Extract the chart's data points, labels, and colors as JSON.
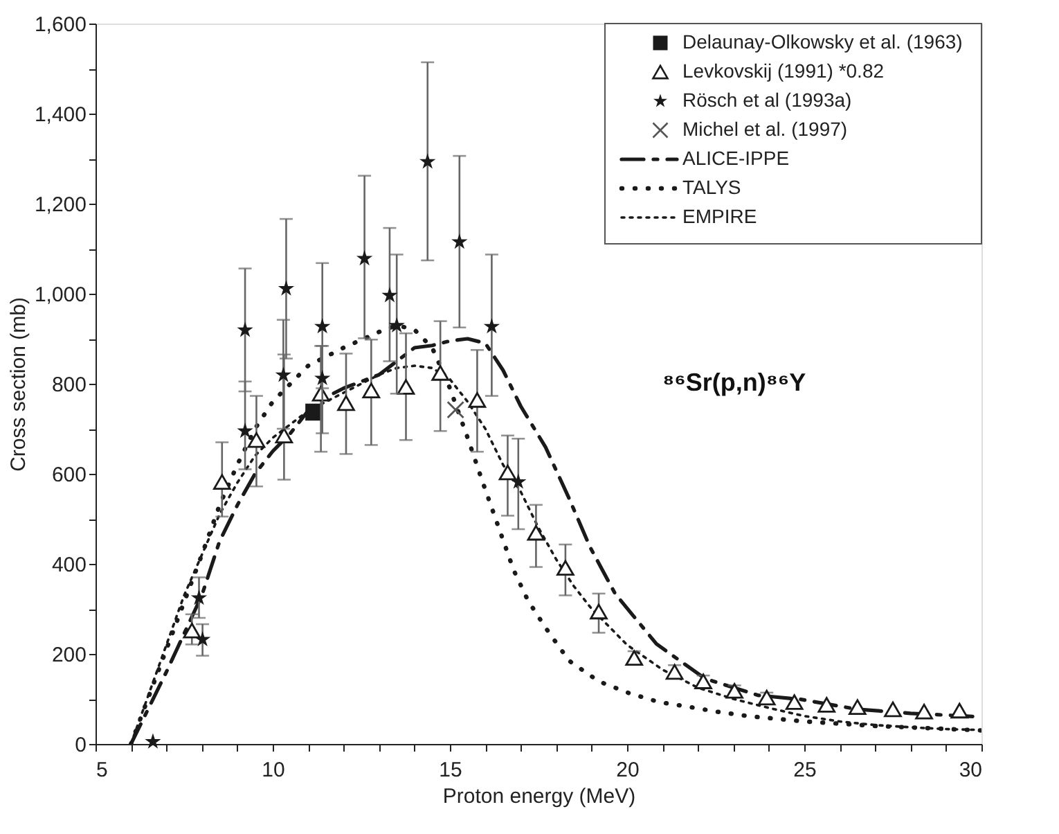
{
  "chart_data": {
    "type": "scatter",
    "xlabel": "Proton energy (MeV)",
    "ylabel": "Cross section (mb)",
    "xlim": [
      5,
      30
    ],
    "ylim": [
      0,
      1600
    ],
    "xticks": [
      5,
      {
        "value": 6,
        "label": null
      },
      {
        "value": 7,
        "label": null
      },
      {
        "value": 8,
        "label": null
      },
      {
        "value": 9,
        "label": null
      },
      10,
      {
        "value": 11,
        "label": null
      },
      {
        "value": 12,
        "label": null
      },
      {
        "value": 13,
        "label": null
      },
      {
        "value": 14,
        "label": null
      },
      15,
      {
        "value": 16,
        "label": null
      },
      {
        "value": 17,
        "label": null
      },
      {
        "value": 18,
        "label": null
      },
      {
        "value": 19,
        "label": null
      },
      20,
      {
        "value": 21,
        "label": null
      },
      {
        "value": 22,
        "label": null
      },
      {
        "value": 23,
        "label": null
      },
      {
        "value": 24,
        "label": null
      },
      25,
      {
        "value": 26,
        "label": null
      },
      {
        "value": 27,
        "label": null
      },
      {
        "value": 28,
        "label": null
      },
      {
        "value": 29,
        "label": null
      },
      30
    ],
    "yticks": [
      0,
      {
        "value": 100,
        "label": null
      },
      200,
      {
        "value": 300,
        "label": null
      },
      400,
      {
        "value": 500,
        "label": null
      },
      600,
      {
        "value": 700,
        "label": null
      },
      800,
      {
        "value": 900,
        "label": null
      },
      {
        "value": 1000,
        "label": "1,000"
      },
      {
        "value": 1100,
        "label": null
      },
      {
        "value": 1200,
        "label": "1,200"
      },
      {
        "value": 1300,
        "label": null
      },
      {
        "value": 1400,
        "label": "1,400"
      },
      {
        "value": 1500,
        "label": null
      },
      {
        "value": 1600,
        "label": "1,600"
      }
    ],
    "grid": false,
    "legend": "top right",
    "annotations": [
      "⁸⁶Sr(p,n)⁸⁶Y"
    ],
    "series": [
      {
        "name": "Delaunay-Olkowsky et al. (1963)",
        "marker": "square",
        "color": "#1a1a1a",
        "x": [
          11.16
        ],
        "values": [
          737
        ]
      },
      {
        "name": "Levkovskij (1991) *0.82",
        "marker": "triangle",
        "color": "#1a1a1a",
        "x": [
          7.72,
          8.57,
          9.54,
          10.32,
          11.36,
          12.07,
          12.78,
          13.76,
          14.73,
          15.77,
          16.63,
          17.43,
          18.26,
          19.2,
          20.2,
          21.34,
          22.15,
          23.03,
          23.94,
          24.72,
          25.63,
          26.5,
          27.5,
          28.38,
          29.38
        ],
        "values": [
          252,
          582,
          675,
          685,
          778,
          757,
          785,
          793,
          824,
          764,
          603,
          469,
          391,
          294,
          191,
          160,
          139,
          118,
          103,
          93,
          87,
          82,
          77,
          72,
          74
        ],
        "errors": [
          [
            221,
            288
          ],
          [
            505,
            670
          ],
          [
            572,
            773
          ],
          [
            587,
            865
          ],
          [
            649,
            884
          ],
          [
            644,
            867
          ],
          [
            664,
            898
          ],
          [
            675,
            912
          ],
          [
            695,
            939
          ],
          [
            649,
            875
          ],
          [
            507,
            685
          ],
          [
            393,
            531
          ],
          [
            330,
            443
          ],
          [
            247,
            334
          ],
          [
            176,
            206
          ],
          [
            145,
            175
          ],
          [
            126,
            152
          ],
          [
            106,
            130
          ],
          [
            92,
            114
          ],
          null,
          null,
          null,
          null,
          null,
          null
        ]
      },
      {
        "name": "Rösch et al (1993a)",
        "marker": "star",
        "color": "#1a1a1a",
        "x": [
          6.62,
          7.92,
          8.02,
          9.22,
          9.22,
          10.3,
          10.38,
          11.4,
          11.4,
          12.59,
          13.3,
          13.5,
          14.37,
          15.27,
          16.18,
          16.93
        ],
        "values": [
          5,
          324,
          232,
          695,
          919,
          819,
          1011,
          812,
          927,
          1078,
          996,
          929,
          1293,
          1115,
          927,
          582
        ],
        "errors": [
          null,
          [
            280,
            370
          ],
          [
            196,
            266
          ],
          [
            610,
            805
          ],
          [
            783,
            1056
          ],
          [
            700,
            942
          ],
          [
            856,
            1166
          ],
          [
            690,
            884
          ],
          [
            790,
            1068
          ],
          [
            901,
            1262
          ],
          [
            850,
            1146
          ],
          [
            778,
            1087
          ],
          [
            1074,
            1514
          ],
          [
            925,
            1306
          ],
          [
            773,
            1087
          ],
          [
            477,
            678
          ]
        ]
      },
      {
        "name": "Michel et al. (1997)",
        "marker": "cross",
        "color": "#555555",
        "x": [
          15.16
        ],
        "values": [
          742
        ]
      },
      {
        "name": "ALICE-IPPE",
        "type": "line",
        "line_style": "dashed",
        "color": "#1a1a1a",
        "x": [
          6,
          7,
          8,
          8.5,
          9,
          9.5,
          10,
          10.5,
          11,
          11.5,
          12,
          13,
          13.5,
          14,
          14.5,
          15,
          15.5,
          16,
          16.5,
          17,
          17.7,
          18.36,
          18.95,
          19.66,
          20.83,
          22.2,
          23.7,
          24.9,
          26.5,
          28,
          29.5,
          30
        ],
        "values": [
          0,
          160,
          330,
          450,
          530,
          600,
          650,
          690,
          740,
          770,
          790,
          820,
          850,
          880,
          885,
          895,
          900,
          890,
          830,
          750,
          659,
          546,
          438,
          334,
          222,
          145,
          108,
          99,
          77,
          68,
          62,
          60
        ]
      },
      {
        "name": "TALYS",
        "type": "line",
        "line_style": "dotted",
        "color": "#1a1a1a",
        "x": [
          6,
          7,
          8,
          8.5,
          9,
          9.5,
          10,
          10.5,
          11,
          12,
          13,
          13.5,
          14,
          14.5,
          15,
          15.5,
          15.9,
          16.2,
          16.5,
          16.8,
          17.2,
          17.7,
          18.36,
          19.2,
          20.05,
          20.9,
          21.7,
          22.5,
          23.4,
          25,
          27,
          30
        ],
        "values": [
          0,
          210,
          420,
          530,
          620,
          700,
          760,
          800,
          840,
          880,
          915,
          930,
          920,
          880,
          790,
          680,
          587,
          520,
          453,
          386,
          319,
          258,
          185,
          139,
          113,
          93,
          83,
          72,
          62,
          50,
          40,
          30
        ]
      },
      {
        "name": "EMPIRE",
        "type": "line",
        "line_style": "dotted",
        "color": "#1a1a1a",
        "x": [
          6,
          6.5,
          7,
          7.5,
          8,
          8.5,
          9,
          9.5,
          10,
          11,
          12,
          13,
          13.5,
          14,
          14.5,
          15,
          15.5,
          16,
          16.5,
          17,
          17.5,
          18,
          18.5,
          19,
          20,
          21,
          22,
          23,
          24,
          25,
          26,
          27,
          28,
          29,
          30
        ],
        "values": [
          0,
          110,
          220,
          330,
          420,
          510,
          580,
          640,
          680,
          740,
          780,
          820,
          835,
          840,
          835,
          810,
          760,
          700,
          620,
          560,
          480,
          410,
          350,
          300,
          220,
          165,
          125,
          100,
          80,
          62,
          50,
          42,
          37,
          33,
          31
        ]
      }
    ]
  }
}
